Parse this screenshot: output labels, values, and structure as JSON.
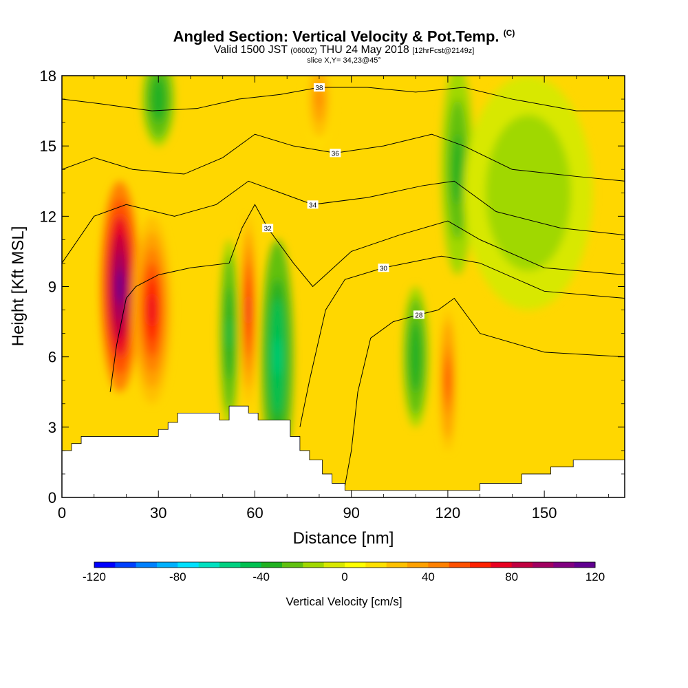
{
  "header": {
    "title": "Angled Section: Vertical Velocity & Pot.Temp.",
    "title_units": "(C)",
    "valid_prefix": "Valid 1500 JST",
    "valid_utc": "(0600Z)",
    "valid_date": "THU 24 May 2018",
    "forecast": "[12hrFcst@2149z]",
    "slice": "slice X,Y= 34,23@45°"
  },
  "chart_data": {
    "type": "heatmap",
    "xlabel": "Distance [nm]",
    "ylabel": "Height [Kft MSL]",
    "xlim": [
      0,
      175
    ],
    "ylim": [
      0,
      18
    ],
    "x_ticks": [
      0,
      30,
      60,
      90,
      120,
      150
    ],
    "y_ticks": [
      0,
      3,
      6,
      9,
      12,
      15,
      18
    ],
    "background_color": "#ffd700",
    "terrain": [
      [
        0,
        2
      ],
      [
        3,
        2
      ],
      [
        3,
        2.3
      ],
      [
        6,
        2.3
      ],
      [
        6,
        2.6
      ],
      [
        30,
        2.6
      ],
      [
        30,
        2.9
      ],
      [
        33,
        2.9
      ],
      [
        33,
        3.2
      ],
      [
        36,
        3.2
      ],
      [
        36,
        3.6
      ],
      [
        49,
        3.6
      ],
      [
        49,
        3.3
      ],
      [
        52,
        3.3
      ],
      [
        52,
        3.9
      ],
      [
        58,
        3.9
      ],
      [
        58,
        3.6
      ],
      [
        61,
        3.6
      ],
      [
        61,
        3.3
      ],
      [
        71,
        3.3
      ],
      [
        71,
        2.6
      ],
      [
        74,
        2.6
      ],
      [
        74,
        2
      ],
      [
        77,
        2
      ],
      [
        77,
        1.6
      ],
      [
        81,
        1.6
      ],
      [
        81,
        1
      ],
      [
        84,
        1
      ],
      [
        84,
        0.6
      ],
      [
        88,
        0.6
      ],
      [
        88,
        0.3
      ],
      [
        130,
        0.3
      ],
      [
        130,
        0.6
      ],
      [
        143,
        0.6
      ],
      [
        143,
        1
      ],
      [
        152,
        1
      ],
      [
        152,
        1.3
      ],
      [
        159,
        1.3
      ],
      [
        159,
        1.6
      ],
      [
        175,
        1.6
      ]
    ],
    "vertical_velocity_features": [
      {
        "x": 18,
        "y": 9,
        "rx": 6,
        "ry": 4.5,
        "value": 110
      },
      {
        "x": 28,
        "y": 8,
        "rx": 6,
        "ry": 4,
        "value": 70
      },
      {
        "x": 58,
        "y": 8,
        "rx": 2.5,
        "ry": 4,
        "value": 70
      },
      {
        "x": 120,
        "y": 5,
        "rx": 2.5,
        "ry": 3,
        "value": 60
      },
      {
        "x": 80,
        "y": 17,
        "rx": 4,
        "ry": 2,
        "value": 40
      },
      {
        "x": 52,
        "y": 7,
        "rx": 3,
        "ry": 4,
        "value": -45
      },
      {
        "x": 67,
        "y": 6,
        "rx": 5,
        "ry": 5,
        "value": -55
      },
      {
        "x": 110,
        "y": 6,
        "rx": 4,
        "ry": 3,
        "value": -40
      },
      {
        "x": 123,
        "y": 14,
        "rx": 5,
        "ry": 4.5,
        "value": -35
      },
      {
        "x": 145,
        "y": 13,
        "rx": 20,
        "ry": 5,
        "value": -18
      },
      {
        "x": 30,
        "y": 17,
        "rx": 5,
        "ry": 2,
        "value": -40
      }
    ],
    "pot_temp_isentropes": [
      {
        "label": "28",
        "points": [
          [
            88,
            0.5
          ],
          [
            90,
            2
          ],
          [
            92,
            4.5
          ],
          [
            96,
            6.8
          ],
          [
            103,
            7.5
          ],
          [
            111,
            7.8
          ],
          [
            117,
            8
          ],
          [
            122,
            8.5
          ],
          [
            130,
            7
          ],
          [
            150,
            6.2
          ],
          [
            175,
            6
          ]
        ]
      },
      {
        "label": "30",
        "points": [
          [
            74,
            3
          ],
          [
            77,
            5
          ],
          [
            82,
            8
          ],
          [
            88,
            9.3
          ],
          [
            100,
            9.8
          ],
          [
            118,
            10.3
          ],
          [
            130,
            10
          ],
          [
            150,
            8.8
          ],
          [
            175,
            8.5
          ]
        ]
      },
      {
        "label": "32",
        "points": [
          [
            15,
            4.5
          ],
          [
            17,
            6.5
          ],
          [
            20,
            8.5
          ],
          [
            23,
            9
          ],
          [
            30,
            9.5
          ],
          [
            40,
            9.8
          ],
          [
            52,
            10
          ],
          [
            56,
            11.5
          ],
          [
            60,
            12.5
          ],
          [
            64,
            11.5
          ],
          [
            72,
            10
          ],
          [
            78,
            9
          ],
          [
            90,
            10.5
          ],
          [
            105,
            11.2
          ],
          [
            120,
            11.8
          ],
          [
            130,
            11
          ],
          [
            150,
            9.8
          ],
          [
            175,
            9.5
          ]
        ]
      },
      {
        "label": "34",
        "points": [
          [
            0,
            10
          ],
          [
            10,
            12
          ],
          [
            20,
            12.5
          ],
          [
            35,
            12
          ],
          [
            48,
            12.5
          ],
          [
            58,
            13.5
          ],
          [
            68,
            13
          ],
          [
            78,
            12.5
          ],
          [
            95,
            12.8
          ],
          [
            112,
            13.3
          ],
          [
            122,
            13.5
          ],
          [
            135,
            12.2
          ],
          [
            155,
            11.5
          ],
          [
            175,
            11.2
          ]
        ]
      },
      {
        "label": "36",
        "points": [
          [
            0,
            14
          ],
          [
            10,
            14.5
          ],
          [
            22,
            14
          ],
          [
            38,
            13.8
          ],
          [
            50,
            14.5
          ],
          [
            60,
            15.5
          ],
          [
            72,
            15
          ],
          [
            85,
            14.7
          ],
          [
            100,
            15
          ],
          [
            115,
            15.5
          ],
          [
            125,
            15
          ],
          [
            140,
            14
          ],
          [
            160,
            13.7
          ],
          [
            175,
            13.5
          ]
        ]
      },
      {
        "label": "38",
        "points": [
          [
            0,
            17
          ],
          [
            12,
            16.8
          ],
          [
            28,
            16.5
          ],
          [
            42,
            16.6
          ],
          [
            55,
            17
          ],
          [
            68,
            17.2
          ],
          [
            80,
            17.5
          ],
          [
            95,
            17.5
          ],
          [
            110,
            17.3
          ],
          [
            125,
            17.5
          ],
          [
            140,
            17
          ],
          [
            160,
            16.5
          ],
          [
            175,
            16.5
          ]
        ]
      }
    ],
    "colorbar": {
      "title": "Vertical Velocity [cm/s]",
      "ticks": [
        -120,
        -80,
        -40,
        0,
        40,
        80,
        120
      ],
      "colors": [
        "#0000ff",
        "#0040ff",
        "#0080ff",
        "#00b0ff",
        "#00e0ff",
        "#00e0c0",
        "#00d080",
        "#00c050",
        "#20b020",
        "#60c010",
        "#a0d800",
        "#d8e800",
        "#ffff00",
        "#ffe000",
        "#ffc000",
        "#ffa000",
        "#ff8000",
        "#ff5000",
        "#ff2000",
        "#e80020",
        "#c00040",
        "#a00060",
        "#800080",
        "#600090"
      ]
    }
  }
}
